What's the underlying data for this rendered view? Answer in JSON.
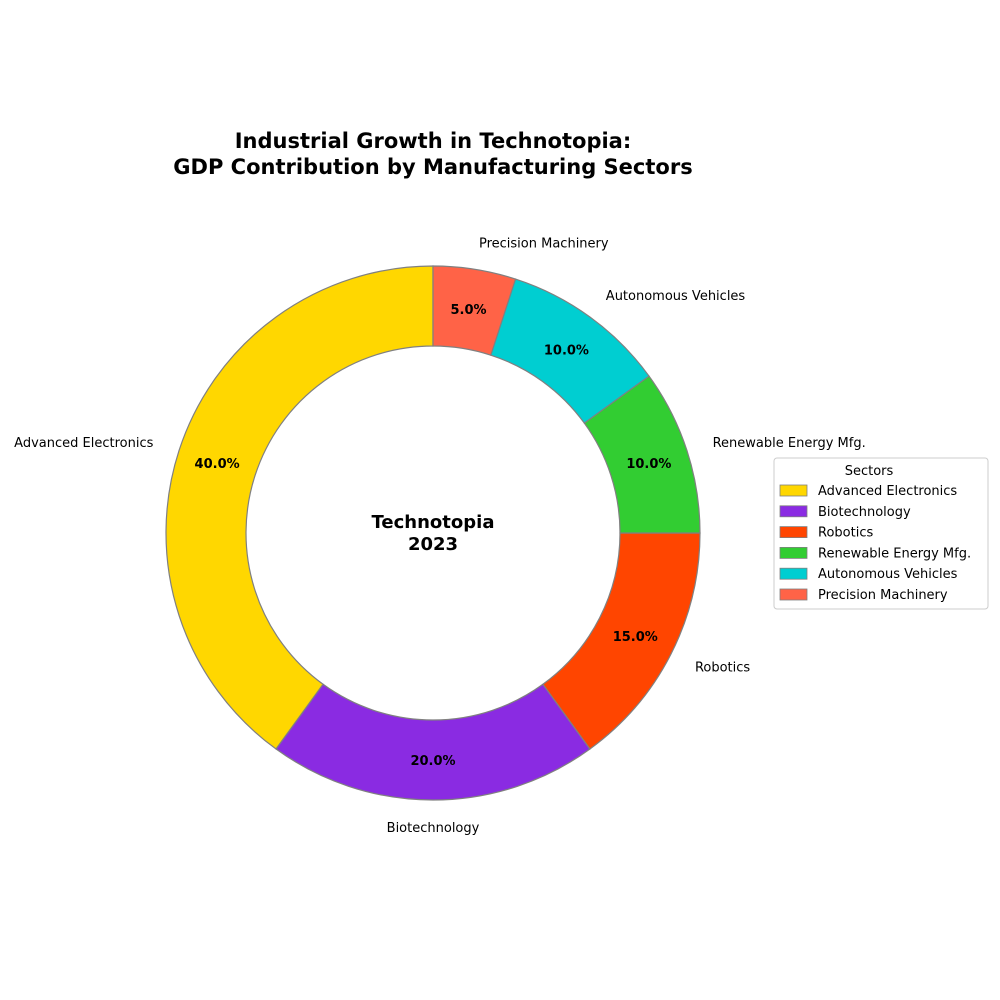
{
  "chart_data": {
    "type": "pie",
    "variant": "donut",
    "title": "Industrial Growth in Technotopia:\nGDP Contribution by Manufacturing Sectors",
    "center_text": "Technotopia\n2023",
    "categories": [
      "Advanced Electronics",
      "Biotechnology",
      "Robotics",
      "Renewable Energy Mfg.",
      "Autonomous Vehicles",
      "Precision Machinery"
    ],
    "values": [
      40.0,
      20.0,
      15.0,
      10.0,
      10.0,
      5.0
    ],
    "value_labels": [
      "40.0%",
      "20.0%",
      "15.0%",
      "10.0%",
      "10.0%",
      "5.0%"
    ],
    "colors": [
      "#FFD700",
      "#8A2BE2",
      "#FF4500",
      "#32CD32",
      "#00CED1",
      "#FF6347"
    ],
    "edge_color": "#808080",
    "legend": {
      "title": "Sectors",
      "placement": "right",
      "entries": [
        "Advanced Electronics",
        "Biotechnology",
        "Robotics",
        "Renewable Energy Mfg.",
        "Autonomous Vehicles",
        "Precision Machinery"
      ]
    }
  }
}
